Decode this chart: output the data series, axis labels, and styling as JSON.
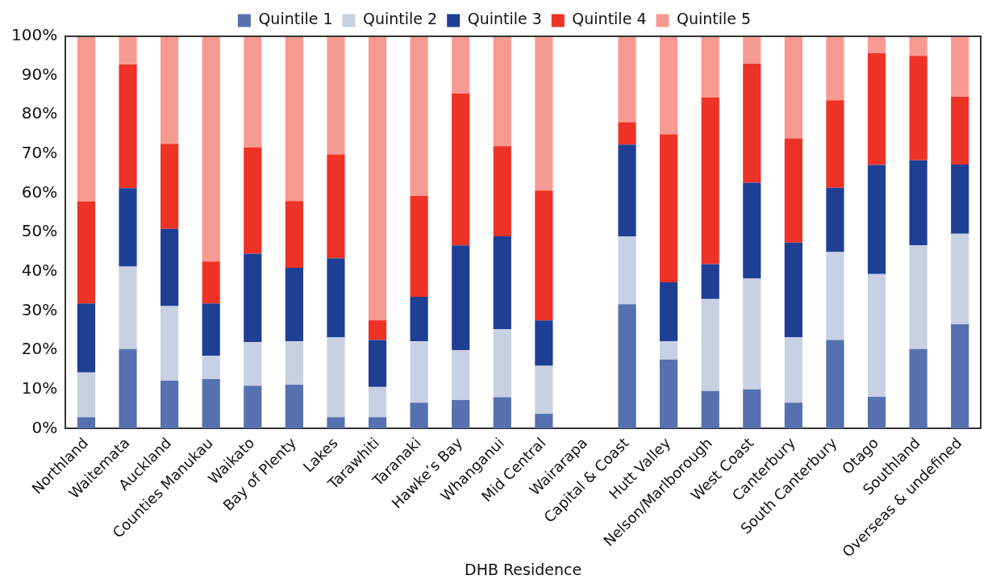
{
  "chart_data": {
    "type": "bar",
    "stacked": true,
    "xlabel": "DHB Residence",
    "categories": [
      "Northland",
      "Waitemata",
      "Auckland",
      "Counties Manukau",
      "Waikato",
      "Bay of Plenty",
      "Lakes",
      "Tarawhiti",
      "Taranaki",
      "Hawke’s Bay",
      "Whanganui",
      "Mid Central",
      "Wairarapa",
      "Capital & Coast",
      "Hutt Valley",
      "Nelson/Marlborough",
      "West Coast",
      "Canterbury",
      "South Canterbury",
      "Otago",
      "Southland",
      "Overseas & undefined"
    ],
    "series": [
      {
        "name": "Quintile 1",
        "color": "#5670b0",
        "values": [
          2.9,
          20.3,
          12.2,
          12.6,
          10.9,
          11.2,
          2.9,
          2.9,
          6.6,
          7.3,
          8.0,
          3.8,
          null,
          31.7,
          17.6,
          9.6,
          10.0,
          6.6,
          22.6,
          8.1,
          20.3,
          26.6
        ]
      },
      {
        "name": "Quintile 2",
        "color": "#c8d0e4",
        "values": [
          11.4,
          21.0,
          19.0,
          6.0,
          11.1,
          11.1,
          20.4,
          7.7,
          15.7,
          12.7,
          17.3,
          12.2,
          null,
          17.3,
          4.7,
          23.4,
          28.3,
          16.7,
          22.4,
          31.3,
          26.4,
          23.1
        ]
      },
      {
        "name": "Quintile 3",
        "color": "#1e3f93",
        "values": [
          17.6,
          20.0,
          19.7,
          13.3,
          22.6,
          18.7,
          20.1,
          12.0,
          11.3,
          26.7,
          23.7,
          11.6,
          null,
          23.4,
          15.0,
          8.9,
          24.4,
          24.1,
          16.4,
          27.8,
          21.7,
          17.6
        ]
      },
      {
        "name": "Quintile 4",
        "color": "#ef3226",
        "values": [
          26.0,
          31.5,
          21.7,
          10.7,
          27.1,
          17.0,
          26.5,
          5.0,
          25.7,
          38.7,
          23.0,
          33.1,
          null,
          5.7,
          37.7,
          42.5,
          30.3,
          26.6,
          22.3,
          28.5,
          26.6,
          17.3
        ]
      },
      {
        "name": "Quintile 5",
        "color": "#f79a92",
        "values": [
          42.1,
          7.2,
          27.4,
          57.4,
          28.3,
          42.0,
          30.1,
          72.4,
          40.7,
          14.6,
          28.0,
          39.3,
          null,
          21.9,
          25.0,
          15.6,
          7.0,
          26.0,
          16.3,
          4.3,
          5.0,
          15.4
        ]
      }
    ],
    "ylim": [
      0,
      100
    ],
    "yticks": [
      {
        "value": 0,
        "label": "0%"
      },
      {
        "value": 10,
        "label": "10%"
      },
      {
        "value": 20,
        "label": "20%"
      },
      {
        "value": 30,
        "label": "30%"
      },
      {
        "value": 40,
        "label": "40%"
      },
      {
        "value": 50,
        "label": "50%"
      },
      {
        "value": 60,
        "label": "60%"
      },
      {
        "value": 70,
        "label": "70%"
      },
      {
        "value": 80,
        "label": "80%"
      },
      {
        "value": 90,
        "label": "90%"
      },
      {
        "value": 100,
        "label": "100%"
      }
    ],
    "grid": false,
    "legend": "top"
  }
}
